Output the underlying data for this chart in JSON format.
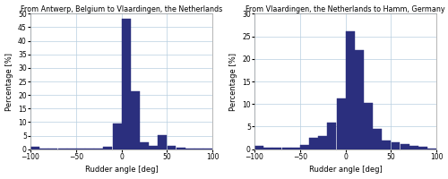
{
  "chart1": {
    "title": "From Antwerp, Belgium to Vlaardingen, the Netherlands",
    "bin_centers": [
      -95,
      -85,
      -75,
      -65,
      -55,
      -45,
      -35,
      -25,
      -15,
      -5,
      5,
      15,
      25,
      35,
      45,
      55,
      65,
      75,
      85,
      95
    ],
    "values": [
      0.8,
      0.2,
      0.2,
      0.1,
      0.1,
      0.2,
      0.2,
      0.3,
      0.8,
      9.5,
      48.0,
      21.5,
      2.5,
      1.2,
      5.2,
      1.2,
      0.5,
      0.3,
      0.2,
      0.2
    ],
    "ylim": [
      0,
      50
    ],
    "yticks": [
      0,
      5,
      10,
      15,
      20,
      25,
      30,
      35,
      40,
      45,
      50
    ],
    "xlabel": "Rudder angle [deg]",
    "ylabel": "Percentage [%]",
    "bar_color": "#2b2f7e"
  },
  "chart2": {
    "title": "From Vlaardingen, the Netherlands to Hamm, Germany",
    "bin_centers": [
      -95,
      -85,
      -75,
      -65,
      -55,
      -45,
      -35,
      -25,
      -15,
      -5,
      5,
      15,
      25,
      35,
      45,
      55,
      65,
      75,
      85,
      95
    ],
    "values": [
      0.8,
      0.3,
      0.3,
      0.3,
      0.3,
      1.0,
      2.5,
      3.0,
      5.8,
      11.2,
      26.2,
      22.0,
      10.2,
      4.5,
      2.0,
      1.5,
      1.2,
      0.8,
      0.5,
      0.2
    ],
    "ylim": [
      0,
      30
    ],
    "yticks": [
      0,
      5,
      10,
      15,
      20,
      25,
      30
    ],
    "xlabel": "Rudder angle [deg]",
    "ylabel": "Percentage [%]",
    "bar_color": "#2b2f7e"
  },
  "background_color": "#ffffff",
  "grid_color": "#b8cfe0",
  "figsize": [
    5.0,
    2.0
  ],
  "dpi": 100
}
